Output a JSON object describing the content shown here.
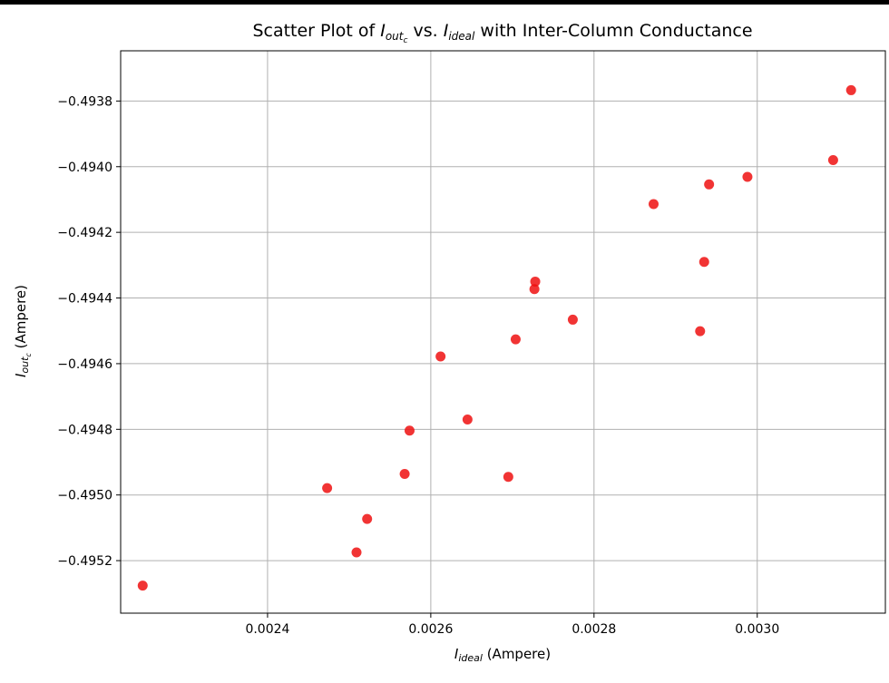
{
  "chart_data": {
    "type": "scatter",
    "title_parts": {
      "prefix": "Scatter Plot of ",
      "y_var_main": "I",
      "y_var_sub": "out",
      "y_var_subsub": "c",
      "middle": " vs. ",
      "x_var_main": "I",
      "x_var_sub": "ideal",
      "suffix": " with Inter-Column Conductance"
    },
    "xlabel": {
      "var_main": "I",
      "var_sub": "ideal",
      "unit": " (Ampere)"
    },
    "ylabel": {
      "var_main": "I",
      "var_sub": "out",
      "var_subsub": "c",
      "unit": " (Ampere)"
    },
    "xlim": [
      0.00222,
      0.003157
    ],
    "ylim": [
      -0.49536,
      -0.493647
    ],
    "xticks": [
      0.0024,
      0.0026,
      0.0028,
      0.003
    ],
    "xtick_labels": [
      "0.0024",
      "0.0026",
      "0.0028",
      "0.0030"
    ],
    "yticks": [
      -0.4938,
      -0.494,
      -0.4942,
      -0.4944,
      -0.4946,
      -0.4948,
      -0.495,
      -0.4952
    ],
    "ytick_labels": [
      "−0.4938",
      "−0.4940",
      "−0.4942",
      "−0.4944",
      "−0.4946",
      "−0.4948",
      "−0.4950",
      "−0.4952"
    ],
    "grid": true,
    "marker_color": "#ee1111",
    "points": [
      {
        "x": 0.002247,
        "y": -0.495276
      },
      {
        "x": 0.002473,
        "y": -0.494979
      },
      {
        "x": 0.002509,
        "y": -0.495175
      },
      {
        "x": 0.002522,
        "y": -0.495073
      },
      {
        "x": 0.002568,
        "y": -0.494936
      },
      {
        "x": 0.002574,
        "y": -0.494804
      },
      {
        "x": 0.002612,
        "y": -0.494578
      },
      {
        "x": 0.002645,
        "y": -0.49477
      },
      {
        "x": 0.002695,
        "y": -0.494945
      },
      {
        "x": 0.002704,
        "y": -0.494526
      },
      {
        "x": 0.002727,
        "y": -0.494373
      },
      {
        "x": 0.002728,
        "y": -0.49435
      },
      {
        "x": 0.002774,
        "y": -0.494466
      },
      {
        "x": 0.002873,
        "y": -0.494114
      },
      {
        "x": 0.00293,
        "y": -0.494501
      },
      {
        "x": 0.002935,
        "y": -0.49429
      },
      {
        "x": 0.002941,
        "y": -0.494054
      },
      {
        "x": 0.002988,
        "y": -0.494031
      },
      {
        "x": 0.003093,
        "y": -0.49398
      },
      {
        "x": 0.003115,
        "y": -0.493767
      }
    ]
  }
}
